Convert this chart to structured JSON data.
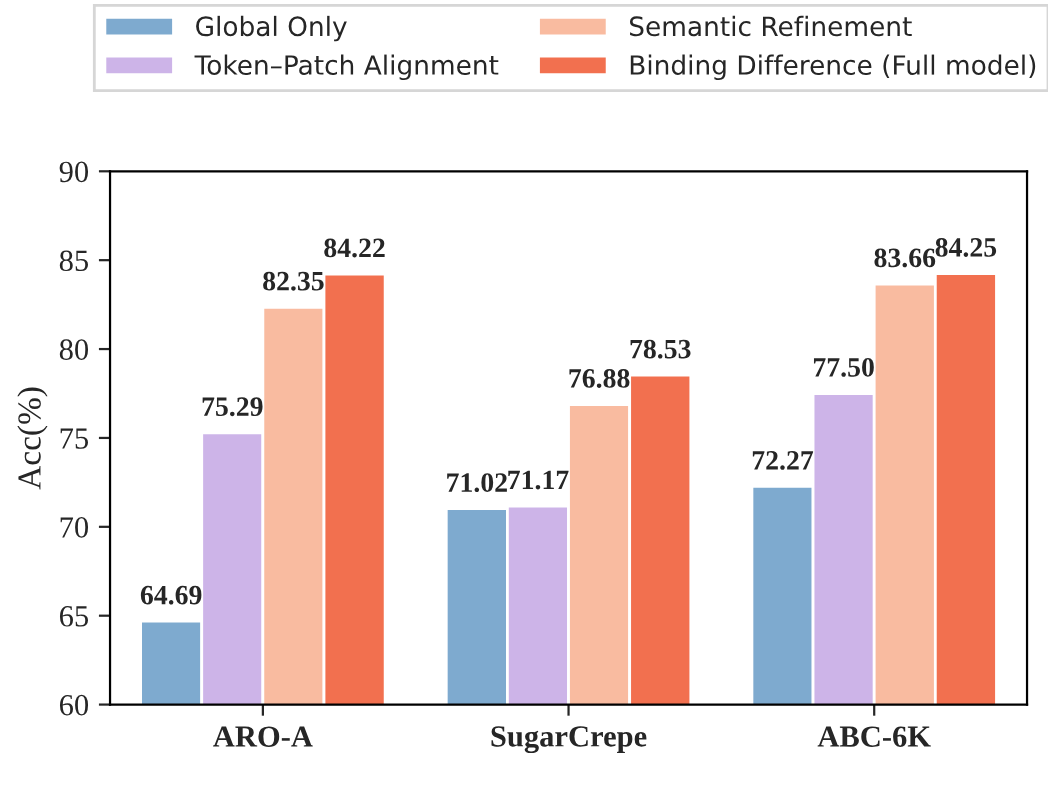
{
  "chart_data": {
    "type": "bar",
    "ylabel": "Acc(%)",
    "categories": [
      "ARO-A",
      "SugarCrepe",
      "ABC-6K"
    ],
    "series": [
      {
        "name": "Global Only",
        "color": "#7eaacf",
        "values": [
          64.69,
          71.02,
          72.27
        ],
        "value_labels": [
          "64.69",
          "71.02",
          "72.27"
        ]
      },
      {
        "name": "Token–Patch Alignment",
        "color": "#cdb4e8",
        "values": [
          75.29,
          71.17,
          77.5
        ],
        "value_labels": [
          "75.29",
          "71.17",
          "77.50"
        ]
      },
      {
        "name": "Semantic Refinement",
        "color": "#f9bba0",
        "values": [
          82.35,
          76.88,
          83.66
        ],
        "value_labels": [
          "82.35",
          "76.88",
          "83.66"
        ]
      },
      {
        "name": "Binding Difference (Full model)",
        "color": "#f2704f",
        "values": [
          84.22,
          78.53,
          84.25
        ],
        "value_labels": [
          "84.22",
          "78.53",
          "84.25"
        ]
      }
    ],
    "ylim": [
      60,
      90
    ],
    "yticks": [
      60,
      65,
      70,
      75,
      80,
      85,
      90
    ],
    "grid": false,
    "legend": "top"
  }
}
